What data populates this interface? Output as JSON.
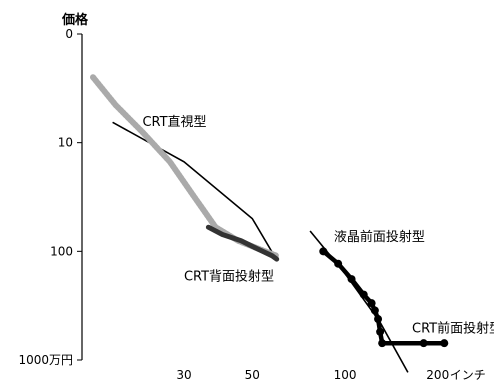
{
  "chart_data": {
    "type": "scatter",
    "title": "",
    "ylabel": "価格",
    "xunit": "インチ",
    "x_scale": "log",
    "y_scale": "log",
    "y_inverted": true,
    "xlim": [
      14,
      300
    ],
    "ylim": [
      1,
      1000
    ],
    "x_ticks": [
      {
        "value": 30,
        "label": "30"
      },
      {
        "value": 50,
        "label": "50"
      },
      {
        "value": 100,
        "label": "100"
      },
      {
        "value": 200,
        "label": "200"
      }
    ],
    "y_ticks": [
      {
        "value": 1,
        "label": "0"
      },
      {
        "value": 10,
        "label": "10"
      },
      {
        "value": 100,
        "label": "100"
      },
      {
        "value": 1000,
        "label": "1000万円"
      }
    ],
    "grid": false,
    "series": [
      {
        "name": "CRT直視型",
        "style": "line",
        "color": "#000000",
        "points": [
          [
            17.6,
            6.5
          ],
          [
            30,
            15
          ],
          [
            50,
            50
          ],
          [
            60,
            120
          ]
        ]
      },
      {
        "name": "CRT背面投射型",
        "style": "band",
        "color": "#aaaaaa",
        "points": [
          [
            15.2,
            2.5
          ],
          [
            18,
            4.5
          ],
          [
            22,
            8
          ],
          [
            27,
            15
          ],
          [
            32,
            30
          ],
          [
            38,
            60
          ],
          [
            45,
            80
          ],
          [
            55,
            100
          ],
          [
            60,
            110
          ]
        ]
      },
      {
        "name": "CRT背面投射型",
        "style": "thick",
        "color": "#333333",
        "points": [
          [
            36,
            60
          ],
          [
            40,
            70
          ],
          [
            46,
            80
          ],
          [
            52,
            95
          ],
          [
            58,
            110
          ],
          [
            60,
            118
          ]
        ]
      },
      {
        "name": "液晶前面投射型",
        "style": "dots",
        "color": "#000000",
        "points": [
          [
            85,
            100
          ],
          [
            95,
            130
          ],
          [
            105,
            180
          ],
          [
            115,
            250
          ],
          [
            122,
            300
          ],
          [
            125,
            350
          ],
          [
            128,
            420
          ],
          [
            130,
            550
          ],
          [
            132,
            700
          ],
          [
            180,
            700
          ],
          [
            210,
            700
          ]
        ]
      },
      {
        "name": "液晶前面投射型",
        "style": "line",
        "color": "#000000",
        "points": [
          [
            77,
            65
          ],
          [
            100,
            160
          ],
          [
            130,
            450
          ],
          [
            160,
            1300
          ]
        ]
      }
    ],
    "annotations": [
      {
        "text": "CRT直視型",
        "x": 22,
        "y": 7
      },
      {
        "text": "CRT背面投射型",
        "x": 30,
        "y": 185
      },
      {
        "text": "液晶前面投射型",
        "x": 92,
        "y": 80
      },
      {
        "text": "CRT前面投射型",
        "x": 165,
        "y": 560
      }
    ]
  }
}
